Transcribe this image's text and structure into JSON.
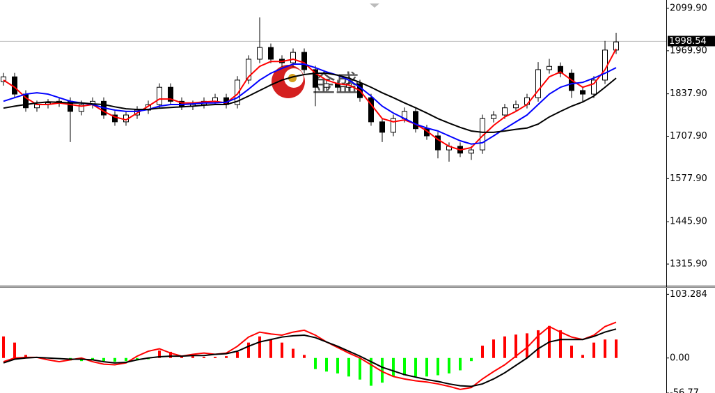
{
  "chart_data": [
    {
      "type": "candlestick",
      "open": [
        1875,
        1890,
        1837,
        1795,
        1805,
        1810,
        1815,
        1784,
        1805,
        1815,
        1773,
        1752,
        1773,
        1788,
        1805,
        1858,
        1815,
        1800,
        1805,
        1815,
        1826,
        1805,
        1880,
        1944,
        1980,
        1944,
        1933,
        1965,
        1912,
        1858,
        1869,
        1858,
        1869,
        1826,
        1752,
        1720,
        1762,
        1784,
        1731,
        1709,
        1666,
        1677,
        1656,
        1666,
        1762,
        1773,
        1795,
        1805,
        1826,
        1912,
        1922,
        1901,
        1848,
        1837,
        1880,
        1972
      ],
      "high": [
        1902,
        1902,
        1849,
        1817,
        1822,
        1827,
        1827,
        1817,
        1827,
        1827,
        1785,
        1785,
        1800,
        1817,
        1870,
        1870,
        1827,
        1817,
        1827,
        1838,
        1838,
        1892,
        1956,
        2072,
        1992,
        1956,
        1977,
        1977,
        1924,
        1881,
        1881,
        1881,
        1881,
        1838,
        1764,
        1774,
        1796,
        1796,
        1743,
        1721,
        1689,
        1689,
        1678,
        1774,
        1785,
        1807,
        1817,
        1838,
        1935,
        1945,
        1934,
        1913,
        1860,
        1892,
        2000,
        2025
      ],
      "low": [
        1863,
        1825,
        1783,
        1783,
        1793,
        1798,
        1690,
        1772,
        1793,
        1761,
        1740,
        1740,
        1761,
        1776,
        1793,
        1803,
        1788,
        1788,
        1793,
        1803,
        1793,
        1793,
        1868,
        1932,
        1932,
        1921,
        1921,
        1900,
        1800,
        1846,
        1846,
        1846,
        1814,
        1740,
        1690,
        1708,
        1750,
        1719,
        1697,
        1640,
        1630,
        1644,
        1635,
        1654,
        1750,
        1761,
        1783,
        1793,
        1814,
        1900,
        1889,
        1825,
        1815,
        1825,
        1868,
        1960
      ],
      "close": [
        1890,
        1837,
        1795,
        1805,
        1810,
        1815,
        1784,
        1805,
        1815,
        1773,
        1752,
        1773,
        1788,
        1805,
        1858,
        1815,
        1800,
        1805,
        1815,
        1826,
        1805,
        1880,
        1944,
        1980,
        1944,
        1933,
        1965,
        1912,
        1858,
        1869,
        1858,
        1869,
        1826,
        1752,
        1720,
        1762,
        1784,
        1731,
        1709,
        1666,
        1677,
        1656,
        1666,
        1762,
        1773,
        1795,
        1805,
        1826,
        1912,
        1922,
        1901,
        1848,
        1837,
        1880,
        1972,
        1997
      ],
      "up_color": "#ffffff",
      "down_color": "#000000",
      "overlays": [
        {
          "color": "#ff0000",
          "values": [
            1880,
            1858,
            1826,
            1805,
            1805,
            1810,
            1805,
            1800,
            1805,
            1784,
            1767,
            1758,
            1779,
            1800,
            1822,
            1822,
            1810,
            1810,
            1813,
            1815,
            1810,
            1837,
            1890,
            1922,
            1937,
            1937,
            1944,
            1933,
            1901,
            1880,
            1869,
            1865,
            1848,
            1805,
            1762,
            1752,
            1758,
            1745,
            1724,
            1698,
            1677,
            1666,
            1673,
            1709,
            1741,
            1767,
            1784,
            1805,
            1848,
            1890,
            1905,
            1880,
            1858,
            1869,
            1912,
            1976
          ]
        },
        {
          "color": "#0000ff",
          "values": [
            1815,
            1826,
            1837,
            1841,
            1837,
            1826,
            1815,
            1810,
            1805,
            1795,
            1788,
            1784,
            1784,
            1790,
            1800,
            1805,
            1805,
            1807,
            1810,
            1810,
            1812,
            1826,
            1852,
            1880,
            1901,
            1916,
            1929,
            1929,
            1918,
            1905,
            1895,
            1880,
            1858,
            1831,
            1800,
            1779,
            1762,
            1745,
            1733,
            1724,
            1709,
            1694,
            1684,
            1688,
            1709,
            1731,
            1752,
            1773,
            1805,
            1837,
            1858,
            1869,
            1873,
            1886,
            1901,
            1918
          ]
        },
        {
          "color": "#000000",
          "values": [
            1794,
            1800,
            1805,
            1810,
            1813,
            1812,
            1810,
            1810,
            1807,
            1805,
            1798,
            1792,
            1790,
            1790,
            1794,
            1796,
            1798,
            1800,
            1803,
            1805,
            1805,
            1815,
            1831,
            1848,
            1865,
            1880,
            1890,
            1897,
            1901,
            1901,
            1895,
            1886,
            1873,
            1858,
            1841,
            1826,
            1810,
            1795,
            1779,
            1762,
            1748,
            1735,
            1724,
            1720,
            1720,
            1724,
            1729,
            1733,
            1745,
            1767,
            1784,
            1800,
            1813,
            1831,
            1858,
            1886
          ]
        }
      ],
      "ylim": [
        1249.7,
        2125.5
      ],
      "yticks": [
        {
          "value": 2099.9,
          "label": "2099.90"
        },
        {
          "value": 1969.9,
          "label": "1969.90"
        },
        {
          "value": 1837.9,
          "label": "1837.90"
        },
        {
          "value": 1707.9,
          "label": "1707.90"
        },
        {
          "value": 1577.9,
          "label": "1577.90"
        },
        {
          "value": 1445.9,
          "label": "1445.90"
        },
        {
          "value": 1315.9,
          "label": "1315.90"
        }
      ],
      "last_price": 1998.54,
      "watermark": "金盛"
    },
    {
      "type": "macd",
      "histogram": {
        "up_color": "#ff0000",
        "down_color": "#00ff00",
        "values": [
          35,
          25,
          5,
          0,
          0,
          -2,
          -4,
          -5,
          -3,
          -5,
          -6,
          -5,
          -4,
          -2,
          12,
          10,
          4,
          3,
          2,
          2,
          3,
          10,
          25,
          35,
          30,
          25,
          15,
          5,
          -18,
          -22,
          -25,
          -30,
          -35,
          -45,
          -40,
          -30,
          -28,
          -30,
          -30,
          -28,
          -25,
          -20,
          -5,
          20,
          30,
          35,
          38,
          40,
          45,
          52,
          45,
          20,
          5,
          25,
          30,
          30
        ]
      },
      "series": [
        {
          "color": "#ff0000",
          "values": [
            -6,
            0,
            1,
            1,
            -3,
            -6,
            -3,
            0,
            -6,
            -10,
            -11,
            -8,
            3,
            11,
            15,
            8,
            3,
            6,
            8,
            6,
            8,
            19,
            34,
            42,
            39,
            37,
            42,
            45,
            37,
            26,
            17,
            8,
            0,
            -11,
            -22,
            -30,
            -34,
            -37,
            -39,
            -42,
            -46,
            -51,
            -48,
            -34,
            -22,
            -11,
            3,
            17,
            36,
            51,
            42,
            34,
            30,
            37,
            51,
            58
          ]
        },
        {
          "color": "#000000",
          "values": [
            -8,
            -2,
            0,
            1,
            0,
            -1,
            -2,
            -2,
            -3,
            -6,
            -8,
            -7,
            -3,
            0,
            2,
            3,
            3,
            4,
            4,
            6,
            7,
            11,
            19,
            26,
            30,
            34,
            36,
            37,
            33,
            26,
            19,
            11,
            3,
            -6,
            -15,
            -21,
            -27,
            -31,
            -35,
            -38,
            -42,
            -45,
            -46,
            -42,
            -34,
            -24,
            -12,
            0,
            15,
            26,
            30,
            30,
            30,
            35,
            42,
            47
          ]
        }
      ],
      "ylim": [
        -56.77,
        115
      ],
      "yticks": [
        103.284,
        {
          "value": 0,
          "label": "0.00"
        },
        -56.77
      ]
    }
  ]
}
